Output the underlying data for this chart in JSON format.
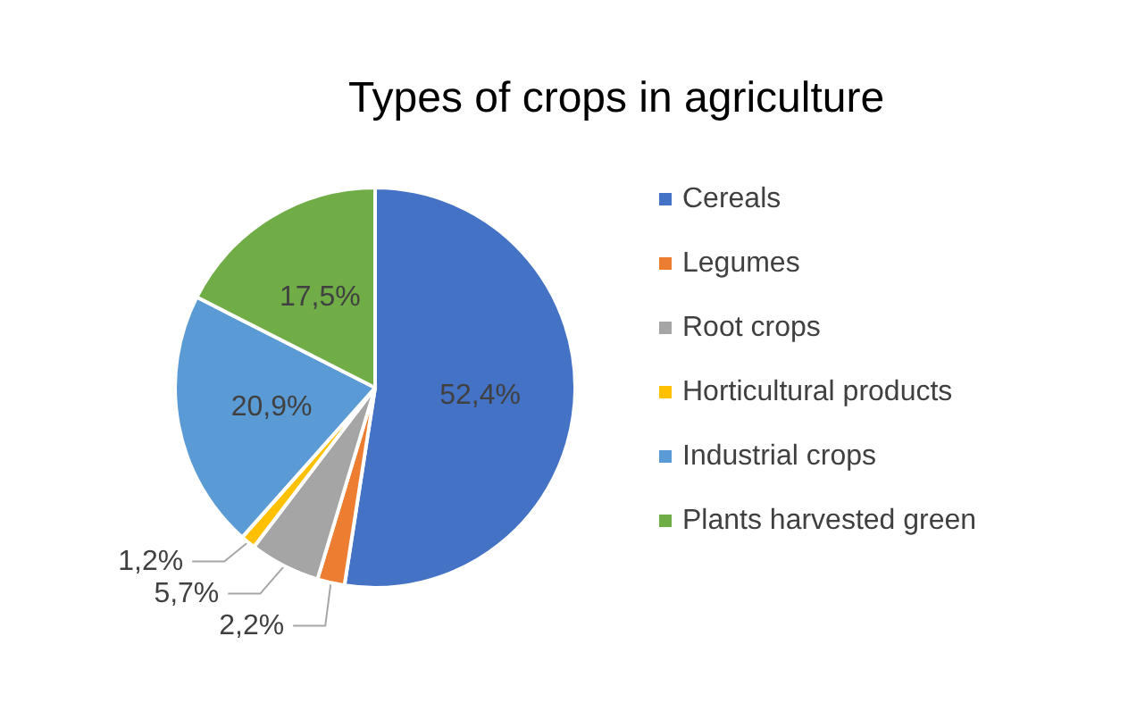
{
  "chart_data": {
    "type": "pie",
    "title": "Types of crops in agriculture",
    "categories": [
      "Cereals",
      "Legumes",
      "Root crops",
      "Horticultural products",
      "Industrial crops",
      "Plants harvested green"
    ],
    "values": [
      52.4,
      2.2,
      5.7,
      1.2,
      20.9,
      17.5
    ],
    "colors": [
      "#4472c4",
      "#ed7d31",
      "#a5a5a5",
      "#ffc000",
      "#5b9bd5",
      "#70ad47"
    ],
    "value_labels": [
      "52,4%",
      "2,2%",
      "5,7%",
      "1,2%",
      "20,9%",
      "17,5%"
    ],
    "legend": "right"
  }
}
